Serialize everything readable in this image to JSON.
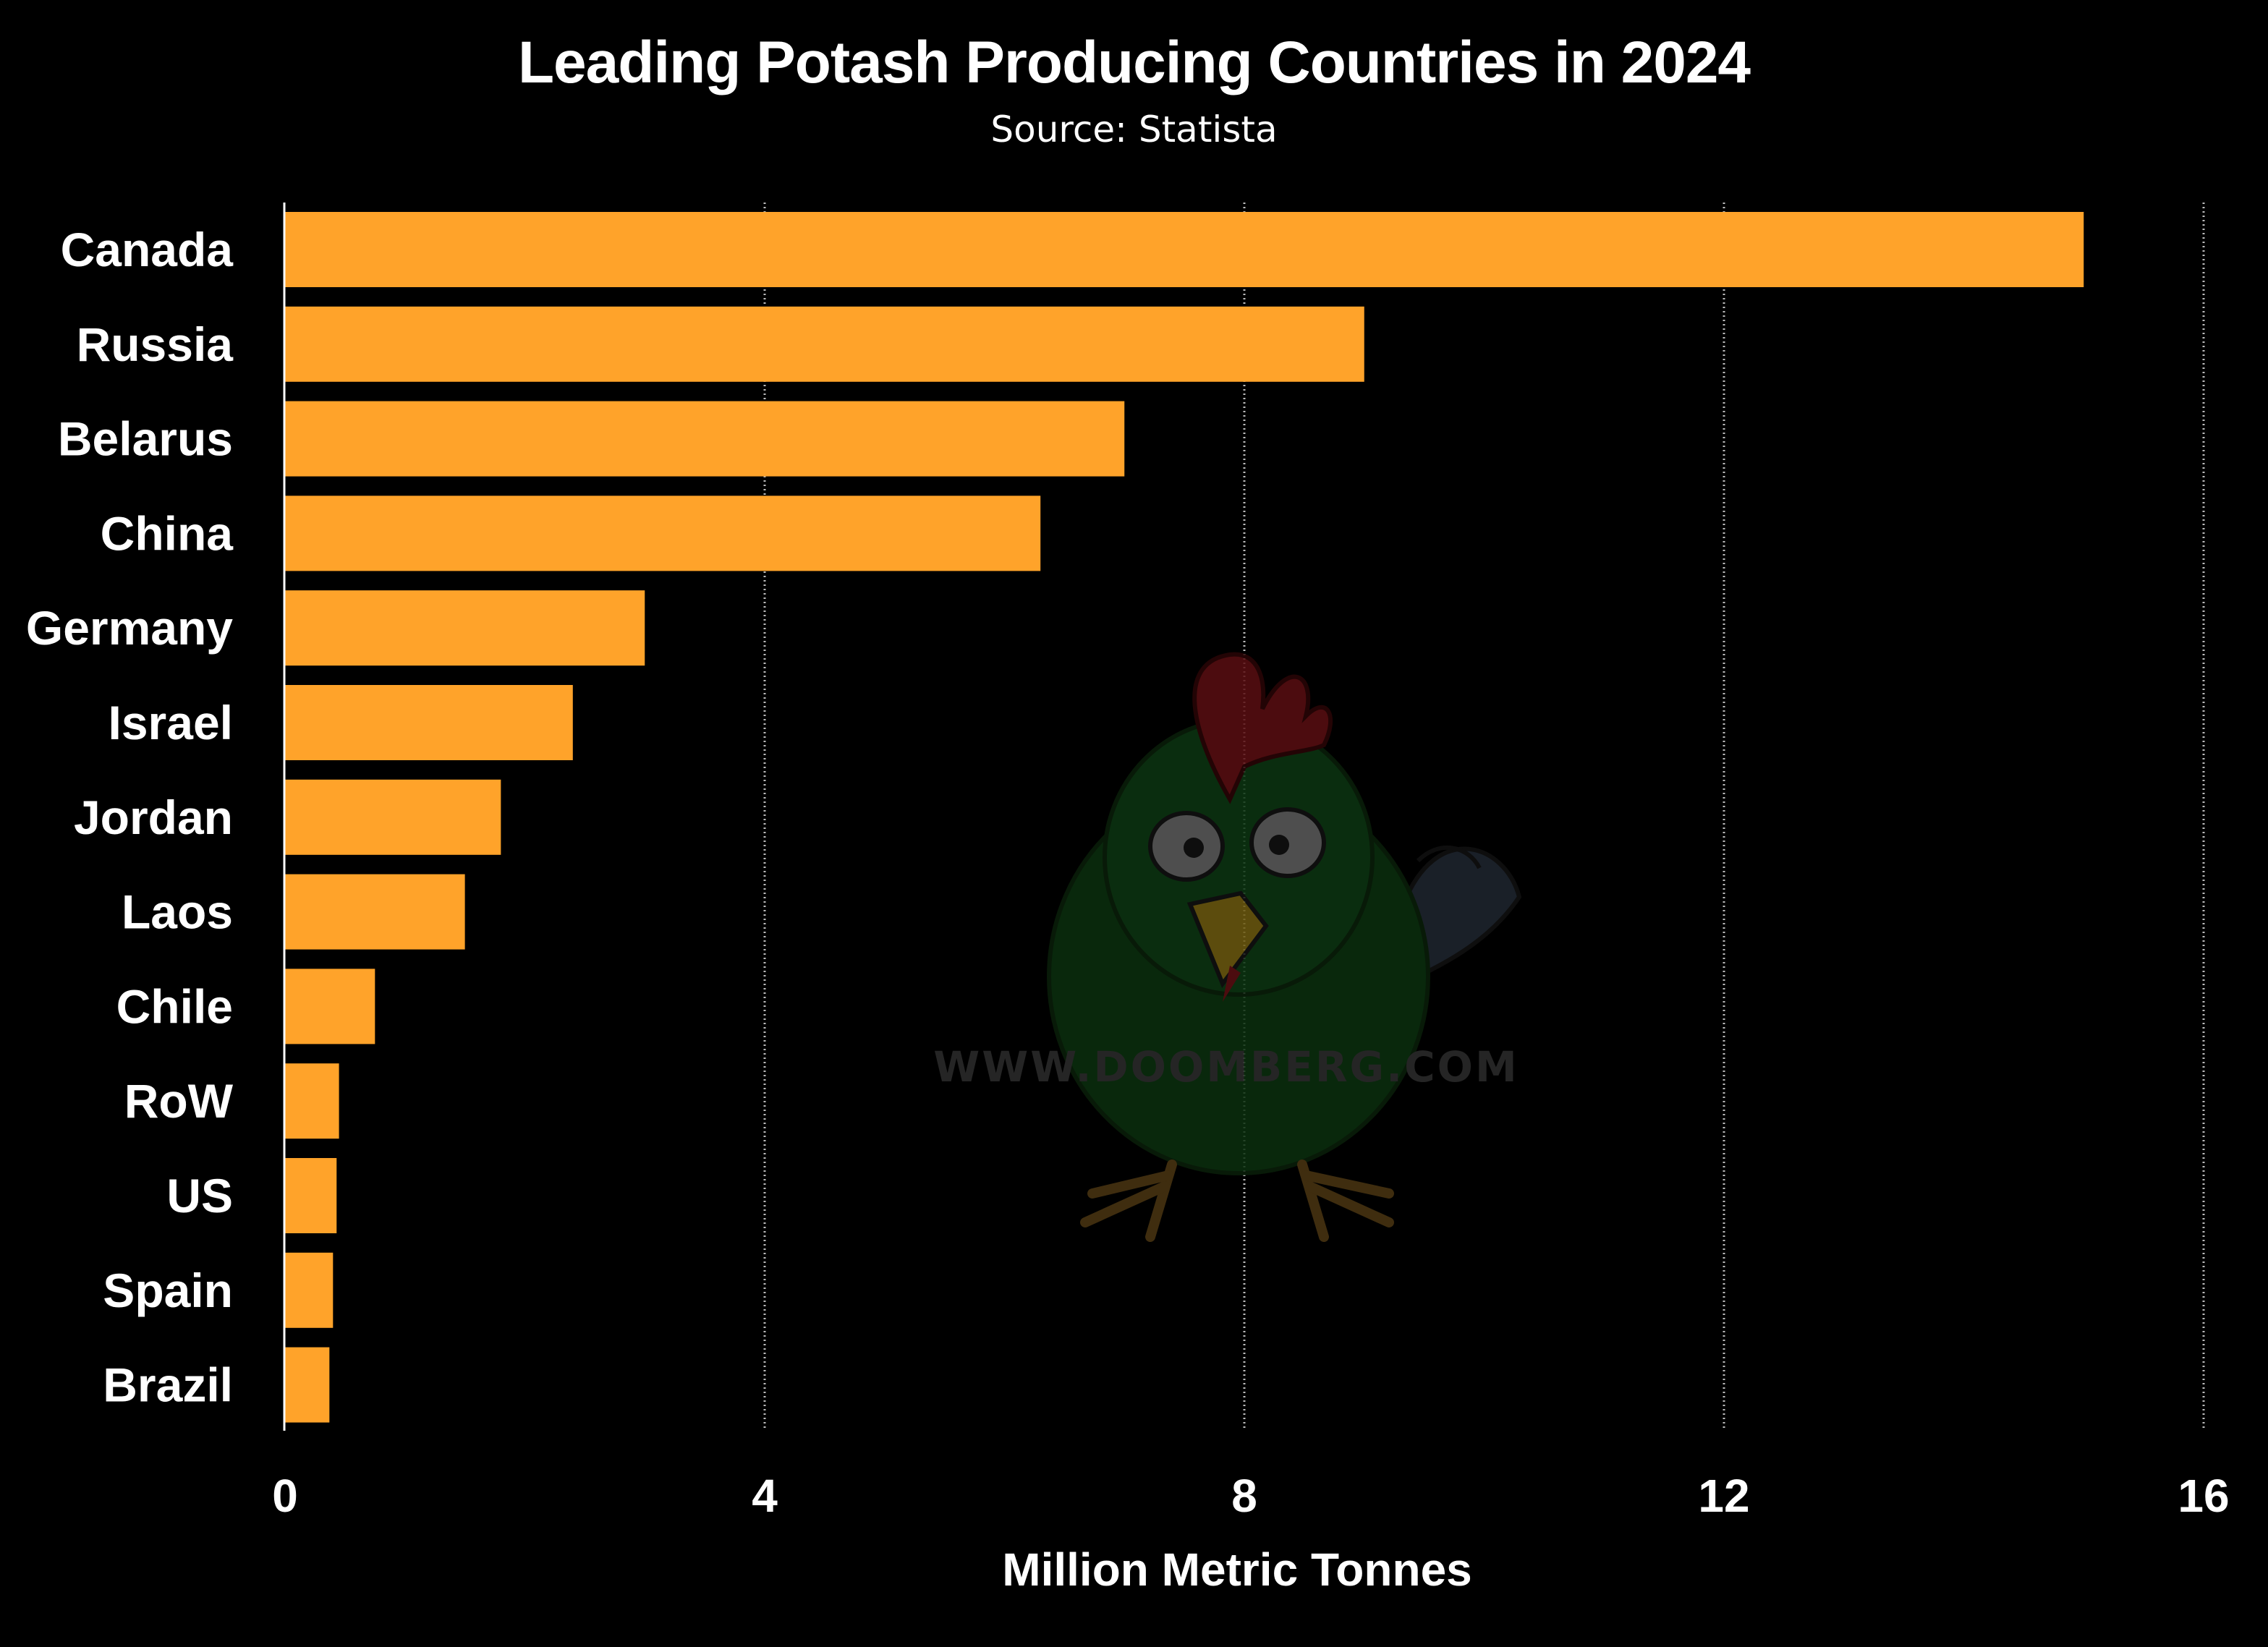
{
  "chart_data": {
    "type": "bar",
    "orientation": "horizontal",
    "title": "Leading Potash Producing Countries in 2024",
    "subtitle": "Source: Statista",
    "xlabel": "Million Metric Tonnes",
    "ylabel": "",
    "categories": [
      "Canada",
      "Russia",
      "Belarus",
      "China",
      "Germany",
      "Israel",
      "Jordan",
      "Laos",
      "Chile",
      "RoW",
      "US",
      "Spain",
      "Brazil"
    ],
    "values": [
      15.0,
      9.0,
      7.0,
      6.3,
      3.0,
      2.4,
      1.8,
      1.5,
      0.75,
      0.45,
      0.43,
      0.4,
      0.37
    ],
    "xlim": [
      0,
      16
    ],
    "xticks": [
      0,
      4,
      8,
      12,
      16
    ],
    "grid": "vertical dotted",
    "legend": "none",
    "bar_color": "#ffa32a",
    "background_color": "#000000",
    "grid_color": "#bbbbbb"
  },
  "watermark": {
    "text": "WWW.DOOMBERG.COM",
    "icon": "rooster-icon"
  }
}
